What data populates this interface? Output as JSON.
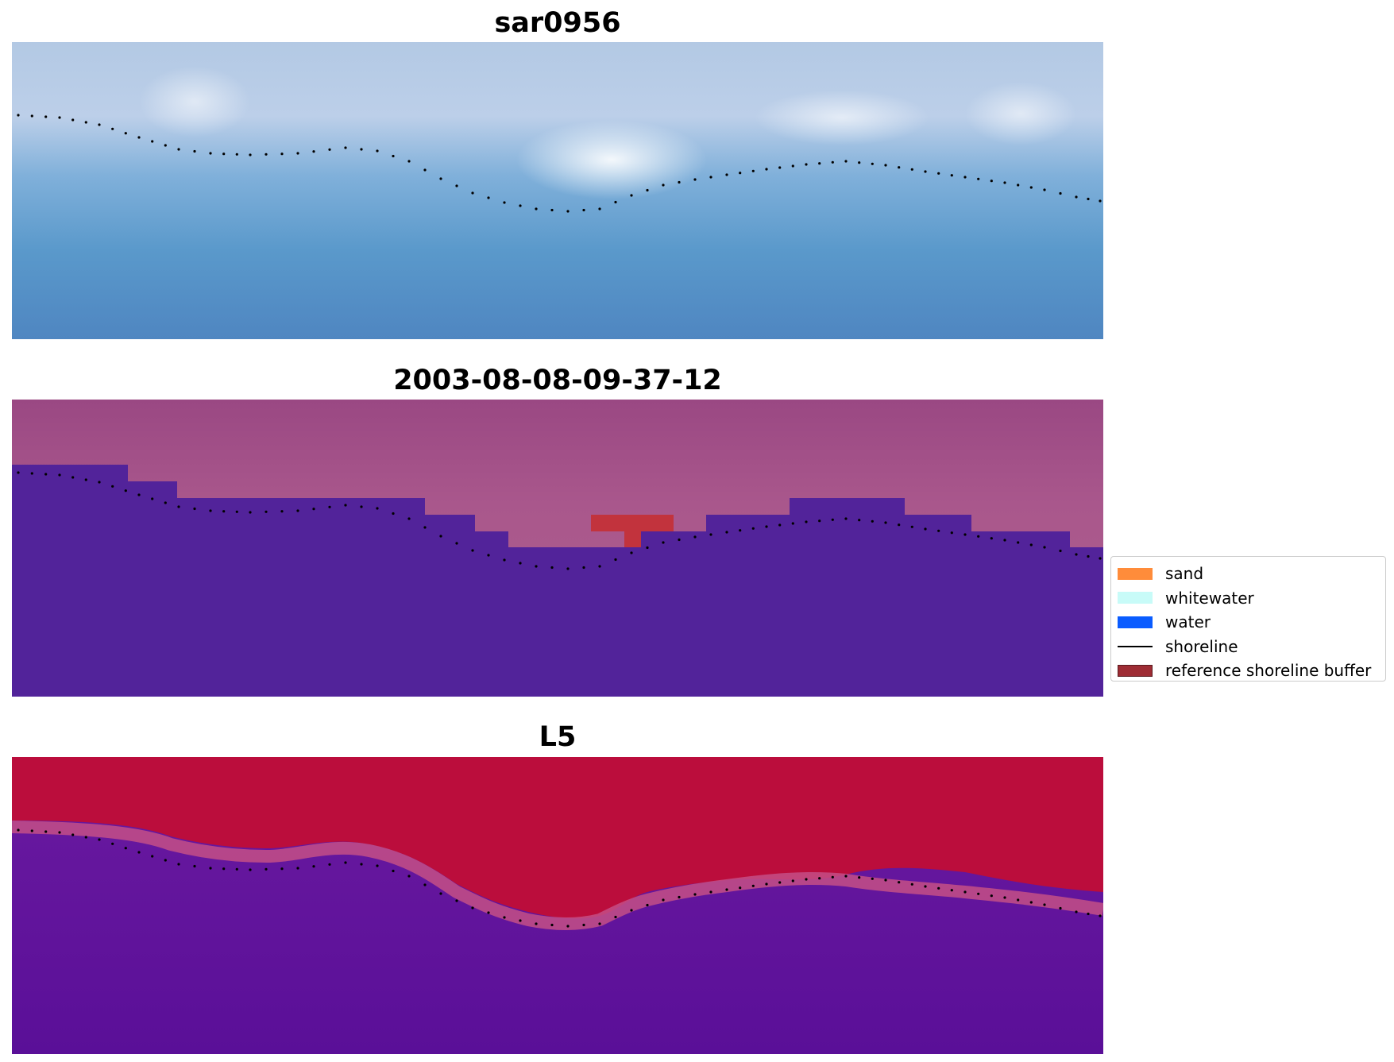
{
  "titles": {
    "top": "sar0956",
    "middle": "2003-08-08-09-37-12",
    "bottom": "L5"
  },
  "legend": {
    "items": [
      {
        "label": "sand",
        "color": "#ff8c3a",
        "kind": "patch"
      },
      {
        "label": "whitewater",
        "color": "#c8fbf8",
        "kind": "patch"
      },
      {
        "label": "water",
        "color": "#0a5cff",
        "kind": "patch"
      },
      {
        "label": "shoreline",
        "color": "#000000",
        "kind": "line"
      },
      {
        "label": "reference shoreline buffer",
        "color": "#9e2c34",
        "kind": "patch"
      }
    ]
  },
  "colors": {
    "rgb_water": "#5a95c6",
    "rgb_shore": "#c3d2e8",
    "classified_water": "#52239a",
    "classified_land": "#a34c86",
    "classified_buffer": "#c2333d",
    "index_land": "#bb0d3c",
    "index_water": "#62169a",
    "shoreline_points": "#000000"
  }
}
